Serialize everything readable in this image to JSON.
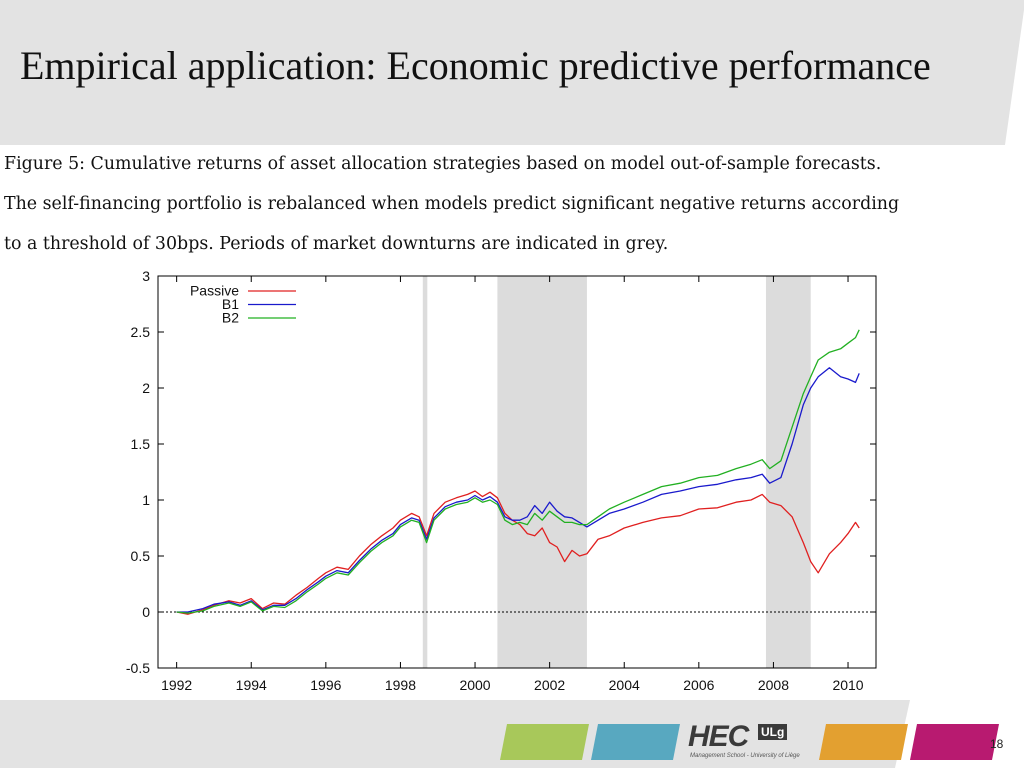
{
  "slide": {
    "title": "Empirical application: Economic predictive performance",
    "caption_lines": [
      "Figure 5:  Cumulative returns of asset allocation strategies based on model out-of-sample forecasts.",
      "The self-financing portfolio is rebalanced when models predict significant negative returns according",
      "to a threshold of 30bps.  Periods of market downturns are indicated in grey."
    ],
    "page_number": "18",
    "logo_text": "HEC",
    "logo_badge": "ULg",
    "logo_subtext": "Management School - University of Liège"
  },
  "colors": {
    "header_band": "#e3e3e3",
    "footer_band": "#e3e3e3",
    "shade": "#dcdcdc",
    "passive": "#e02020",
    "b1": "#1a1acc",
    "b2": "#22b022",
    "footer_green": "#a8c85a",
    "footer_blue": "#58a8c0",
    "footer_orange": "#e3a030",
    "footer_magenta": "#b81a70"
  },
  "chart_data": {
    "type": "line",
    "xlim": [
      1991.5,
      2010.75
    ],
    "ylim": [
      -0.5,
      3
    ],
    "x_ticks": [
      "1992",
      "1994",
      "1996",
      "1998",
      "2000",
      "2002",
      "2004",
      "2006",
      "2008",
      "2010"
    ],
    "y_ticks": [
      "3",
      "2.5",
      "2",
      "1.5",
      "1",
      "0.5",
      "0",
      "-0.5"
    ],
    "shaded_periods": [
      [
        1998.6,
        1998.72
      ],
      [
        2000.6,
        2003.0
      ],
      [
        2007.8,
        2009.0
      ]
    ],
    "zero_line": true,
    "legend_position": "top-left",
    "series": [
      {
        "name": "Passive",
        "color": "#e02020",
        "x": [
          1992.0,
          1992.3,
          1992.7,
          1993.0,
          1993.4,
          1993.7,
          1994.0,
          1994.3,
          1994.6,
          1994.9,
          1995.2,
          1995.5,
          1995.8,
          1996.0,
          1996.3,
          1996.6,
          1996.9,
          1997.2,
          1997.5,
          1997.8,
          1998.0,
          1998.3,
          1998.5,
          1998.7,
          1998.9,
          1999.2,
          1999.5,
          1999.8,
          2000.0,
          2000.2,
          2000.4,
          2000.6,
          2000.8,
          2001.0,
          2001.2,
          2001.4,
          2001.6,
          2001.8,
          2002.0,
          2002.2,
          2002.4,
          2002.6,
          2002.8,
          2003.0,
          2003.3,
          2003.6,
          2004.0,
          2004.5,
          2005.0,
          2005.5,
          2006.0,
          2006.5,
          2007.0,
          2007.4,
          2007.7,
          2007.9,
          2008.2,
          2008.5,
          2008.8,
          2009.0,
          2009.2,
          2009.5,
          2009.8,
          2010.0,
          2010.2,
          2010.3
        ],
        "values": [
          0.0,
          -0.02,
          0.02,
          0.06,
          0.1,
          0.08,
          0.12,
          0.03,
          0.08,
          0.07,
          0.15,
          0.22,
          0.3,
          0.35,
          0.4,
          0.38,
          0.5,
          0.6,
          0.68,
          0.75,
          0.82,
          0.88,
          0.85,
          0.68,
          0.88,
          0.98,
          1.02,
          1.05,
          1.08,
          1.03,
          1.07,
          1.02,
          0.88,
          0.82,
          0.78,
          0.7,
          0.68,
          0.75,
          0.62,
          0.58,
          0.45,
          0.55,
          0.5,
          0.52,
          0.65,
          0.68,
          0.75,
          0.8,
          0.84,
          0.86,
          0.92,
          0.93,
          0.98,
          1.0,
          1.05,
          0.98,
          0.95,
          0.85,
          0.62,
          0.45,
          0.35,
          0.52,
          0.62,
          0.7,
          0.8,
          0.75
        ]
      },
      {
        "name": "B1",
        "color": "#1a1acc",
        "x": [
          1992.0,
          1992.3,
          1992.7,
          1993.0,
          1993.4,
          1993.7,
          1994.0,
          1994.3,
          1994.6,
          1994.9,
          1995.2,
          1995.5,
          1995.8,
          1996.0,
          1996.3,
          1996.6,
          1996.9,
          1997.2,
          1997.5,
          1997.8,
          1998.0,
          1998.3,
          1998.5,
          1998.7,
          1998.9,
          1999.2,
          1999.5,
          1999.8,
          2000.0,
          2000.2,
          2000.4,
          2000.6,
          2000.8,
          2001.0,
          2001.2,
          2001.4,
          2001.6,
          2001.8,
          2002.0,
          2002.2,
          2002.4,
          2002.6,
          2002.8,
          2003.0,
          2003.3,
          2003.6,
          2004.0,
          2004.5,
          2005.0,
          2005.5,
          2006.0,
          2006.5,
          2007.0,
          2007.4,
          2007.7,
          2007.9,
          2008.2,
          2008.5,
          2008.8,
          2009.0,
          2009.2,
          2009.5,
          2009.8,
          2010.0,
          2010.2,
          2010.3
        ],
        "values": [
          0.0,
          0.0,
          0.03,
          0.07,
          0.09,
          0.06,
          0.1,
          0.02,
          0.06,
          0.06,
          0.12,
          0.2,
          0.27,
          0.32,
          0.37,
          0.35,
          0.46,
          0.56,
          0.64,
          0.7,
          0.78,
          0.84,
          0.82,
          0.65,
          0.84,
          0.94,
          0.98,
          1.0,
          1.04,
          1.0,
          1.03,
          0.98,
          0.85,
          0.82,
          0.82,
          0.85,
          0.95,
          0.88,
          0.98,
          0.9,
          0.85,
          0.84,
          0.8,
          0.76,
          0.82,
          0.88,
          0.92,
          0.98,
          1.05,
          1.08,
          1.12,
          1.14,
          1.18,
          1.2,
          1.23,
          1.15,
          1.2,
          1.5,
          1.85,
          2.0,
          2.1,
          2.18,
          2.1,
          2.08,
          2.05,
          2.13
        ]
      },
      {
        "name": "B2",
        "color": "#22b022",
        "x": [
          1992.0,
          1992.3,
          1992.7,
          1993.0,
          1993.4,
          1993.7,
          1994.0,
          1994.3,
          1994.6,
          1994.9,
          1995.2,
          1995.5,
          1995.8,
          1996.0,
          1996.3,
          1996.6,
          1996.9,
          1997.2,
          1997.5,
          1997.8,
          1998.0,
          1998.3,
          1998.5,
          1998.7,
          1998.9,
          1999.2,
          1999.5,
          1999.8,
          2000.0,
          2000.2,
          2000.4,
          2000.6,
          2000.8,
          2001.0,
          2001.2,
          2001.4,
          2001.6,
          2001.8,
          2002.0,
          2002.2,
          2002.4,
          2002.6,
          2002.8,
          2003.0,
          2003.3,
          2003.6,
          2004.0,
          2004.5,
          2005.0,
          2005.5,
          2006.0,
          2006.5,
          2007.0,
          2007.4,
          2007.7,
          2007.9,
          2008.2,
          2008.5,
          2008.8,
          2009.0,
          2009.2,
          2009.5,
          2009.8,
          2010.0,
          2010.2,
          2010.3
        ],
        "values": [
          0.0,
          -0.01,
          0.01,
          0.05,
          0.08,
          0.05,
          0.09,
          0.01,
          0.05,
          0.04,
          0.1,
          0.18,
          0.25,
          0.3,
          0.35,
          0.33,
          0.44,
          0.54,
          0.62,
          0.68,
          0.76,
          0.82,
          0.8,
          0.62,
          0.82,
          0.92,
          0.96,
          0.98,
          1.02,
          0.98,
          1.0,
          0.96,
          0.82,
          0.78,
          0.8,
          0.78,
          0.88,
          0.82,
          0.9,
          0.85,
          0.8,
          0.8,
          0.78,
          0.78,
          0.85,
          0.92,
          0.98,
          1.05,
          1.12,
          1.15,
          1.2,
          1.22,
          1.28,
          1.32,
          1.36,
          1.28,
          1.35,
          1.65,
          1.95,
          2.1,
          2.25,
          2.32,
          2.35,
          2.4,
          2.45,
          2.52
        ]
      }
    ]
  }
}
